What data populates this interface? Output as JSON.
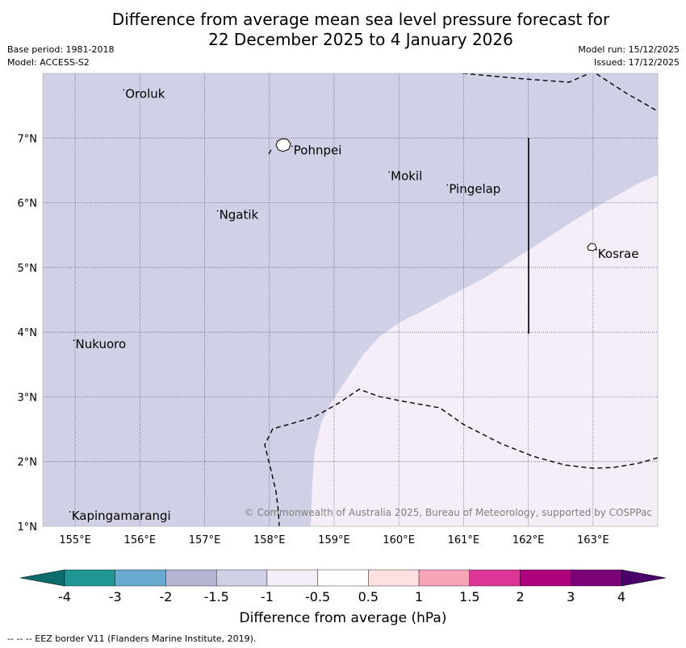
{
  "title_line1": "Difference from average mean sea level pressure forecast for",
  "title_line2": "22 December 2025 to 4 January 2026",
  "base_period": "Base period: 1981-2018",
  "model": "Model: ACCESS-S2",
  "model_run": "Model run: 15/12/2025",
  "issued": "Issued: 17/12/2025",
  "copyright": "© Commonwealth of Australia 2025, Bureau of Meteorology, supported by COSPPac",
  "footer": "--  --  -- EEZ border V11 (Flanders Marine Institute, 2019).",
  "map": {
    "lon_min": 154.5,
    "lon_max": 164.0,
    "lat_min": 1.0,
    "lat_max": 8.0,
    "lon_ticks": [
      155,
      156,
      157,
      158,
      159,
      160,
      161,
      162,
      163
    ],
    "lon_labels": [
      "155°E",
      "156°E",
      "157°E",
      "158°E",
      "159°E",
      "160°E",
      "161°E",
      "162°E",
      "163°E"
    ],
    "lat_ticks": [
      7,
      6,
      5,
      4,
      3,
      2,
      1
    ],
    "lat_labels": [
      "7°N",
      "6°N",
      "5°N",
      "4°N",
      "3°N",
      "2°N",
      "1°N"
    ],
    "places": [
      {
        "name": "Oroluk",
        "lon": 155.75,
        "lat": 7.62
      },
      {
        "name": "Pohnpei",
        "lon": 158.35,
        "lat": 6.75
      },
      {
        "name": "Mokil",
        "lon": 159.85,
        "lat": 6.35
      },
      {
        "name": "Pingelap",
        "lon": 160.75,
        "lat": 6.15
      },
      {
        "name": "Ngatik",
        "lon": 157.2,
        "lat": 5.75
      },
      {
        "name": "Kosrae",
        "lon": 163.05,
        "lat": 5.15
      },
      {
        "name": "Nukuoro",
        "lon": 154.98,
        "lat": 3.75
      },
      {
        "name": "Kapingamarangi",
        "lon": 154.92,
        "lat": 1.1
      }
    ],
    "regions": {
      "low_class": "-1.5 to -1",
      "high_class": "-1 to -0.5"
    }
  },
  "chart_data": {
    "type": "heatmap",
    "title": "Difference from average mean sea level pressure forecast for 22 December 2025 to 4 January 2026",
    "units": "hPa",
    "colorbar_label": "Difference from average (hPa)",
    "levels": [
      -4,
      -3,
      -2,
      -1.5,
      -1,
      -0.5,
      0.5,
      1,
      1.5,
      2,
      3,
      4
    ],
    "level_labels": [
      "-4",
      "-3",
      "-2",
      "-1.5",
      "-1",
      "-0.5",
      "0.5",
      "1",
      "1.5",
      "2",
      "3",
      "4"
    ],
    "colors": [
      "#0d6d6d",
      "#1f9595",
      "#67a9cf",
      "#b4b6d4",
      "#d0d1e6",
      "#f5eef8",
      "#ffffff",
      "#fee0e0",
      "#f7a3b8",
      "#dd3497",
      "#ae017e",
      "#7a0177",
      "#49006a"
    ],
    "extend": "both",
    "present_classes": [
      "-1.5 to -1",
      "-1 to -0.5"
    ]
  }
}
